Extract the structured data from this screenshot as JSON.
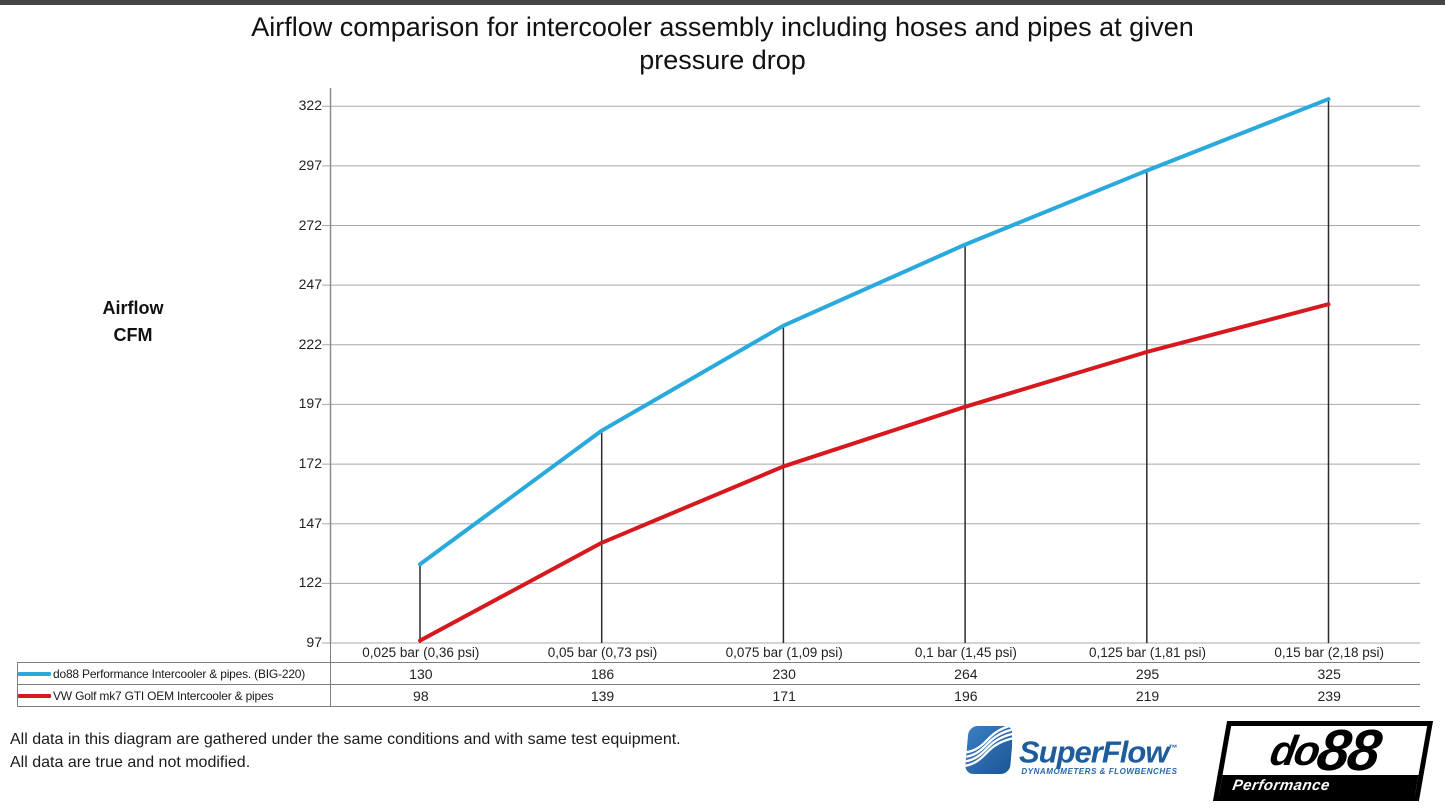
{
  "chart_data": {
    "type": "line",
    "title": "Airflow comparison for intercooler assembly including hoses and pipes at given pressure drop",
    "xlabel": "",
    "ylabel": "Airflow CFM",
    "ylabel_lines": [
      "Airflow",
      "CFM"
    ],
    "categories": [
      "0,025 bar (0,36 psi)",
      "0,05 bar (0,73 psi)",
      "0,075 bar (1,09 psi)",
      "0,1 bar (1,45 psi)",
      "0,125 bar (1,81 psi)",
      "0,15 bar (2,18 psi)"
    ],
    "series": [
      {
        "name": "do88 Performance Intercooler & pipes. (BIG-220)",
        "color": "#29A9DC",
        "values": [
          130,
          186,
          230,
          264,
          295,
          325
        ]
      },
      {
        "name": "VW Golf mk7 GTI OEM Intercooler & pipes",
        "color": "#D6191F",
        "values": [
          98,
          139,
          171,
          196,
          219,
          239
        ]
      }
    ],
    "y_ticks": [
      97,
      122,
      147,
      172,
      197,
      222,
      247,
      272,
      297,
      322
    ],
    "ylim": [
      97,
      325
    ],
    "grid": "horizontal",
    "grid_color": "#A8A8A8",
    "axis_color": "#8C8C8C",
    "drop_line_color": "#2B2B2B",
    "drop_lines": true,
    "legend_position": "bottom-table"
  },
  "footnote": {
    "line1": "All data in this diagram are gathered under the same conditions and with same test equipment.",
    "line2": "All data are true and not modified."
  },
  "logos": {
    "superflow": {
      "name": "SuperFlow",
      "tm": "™",
      "subtitle": "DYNAMOMETERS & FLOWBENCHES",
      "icon_blue": "#2E6FB7",
      "text_blue": "#1E5C9C"
    },
    "do88": {
      "name_part1": "do",
      "name_part2": "88",
      "subtitle": "Performance",
      "color": "#000000"
    }
  }
}
